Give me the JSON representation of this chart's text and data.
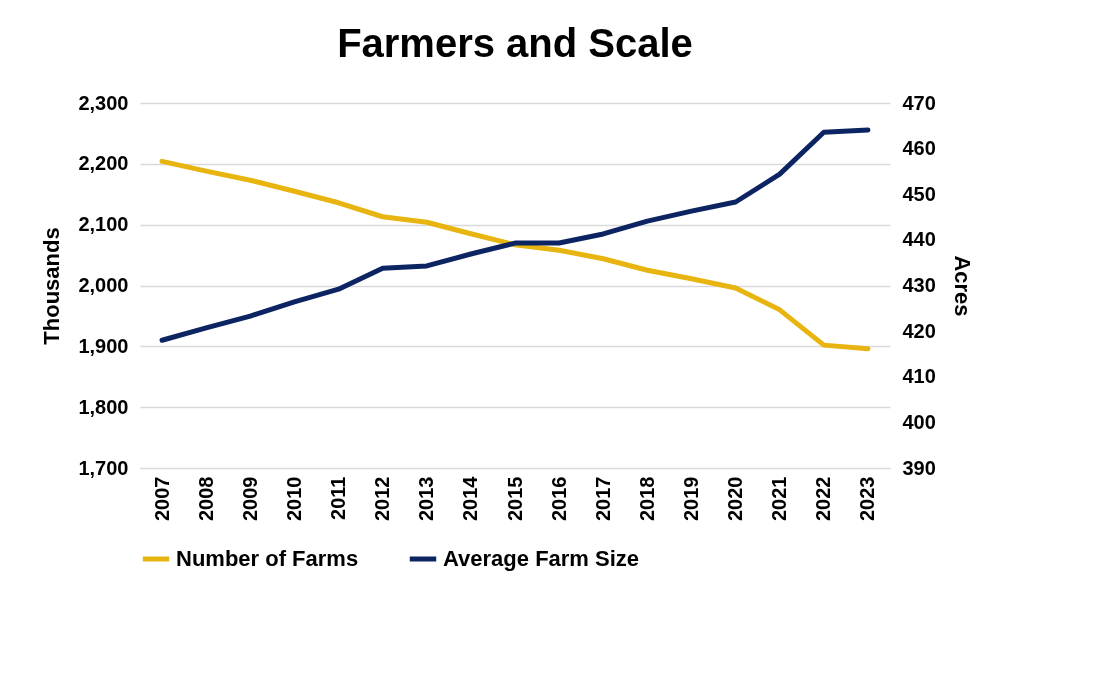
{
  "chart_data": {
    "type": "line",
    "title": "Farmers and Scale",
    "ylabel": "Thousands",
    "y2label": "Acres",
    "categories": [
      "2007",
      "2008",
      "2009",
      "2010",
      "2011",
      "2012",
      "2013",
      "2014",
      "2015",
      "2016",
      "2017",
      "2018",
      "2019",
      "2020",
      "2021",
      "2022",
      "2023"
    ],
    "series": [
      {
        "name": "Number of Farms",
        "color": "#e8b410",
        "values": [
          2204,
          2188,
          2173,
          2155,
          2136,
          2113,
          2104,
          2085,
          2067,
          2058,
          2044,
          2025,
          2011,
          1996,
          1960,
          1902,
          1896
        ]
      },
      {
        "name": "Average Farm Size",
        "color": "#0c2462",
        "axis": "y2",
        "values": [
          418.0,
          420.7,
          423.3,
          426.4,
          429.2,
          433.8,
          434.3,
          436.9,
          439.3,
          439.3,
          441.3,
          444.1,
          446.3,
          448.3,
          454.4,
          463.6,
          464.1
        ]
      }
    ],
    "ylim": [
      1700,
      2300
    ],
    "yticks": [
      {
        "value": 1700,
        "label": "1,700"
      },
      {
        "value": 1800,
        "label": "1,800"
      },
      {
        "value": 1900,
        "label": "1,900"
      },
      {
        "value": 2000,
        "label": "2,000"
      },
      {
        "value": 2100,
        "label": "2,100"
      },
      {
        "value": 2200,
        "label": "2,200"
      },
      {
        "value": 2300,
        "label": "2,300"
      }
    ],
    "y2lim": [
      390,
      470
    ],
    "y2ticks": [
      390,
      400,
      410,
      420,
      430,
      440,
      450,
      460,
      470
    ],
    "grid": "y",
    "legend": "bottom"
  }
}
